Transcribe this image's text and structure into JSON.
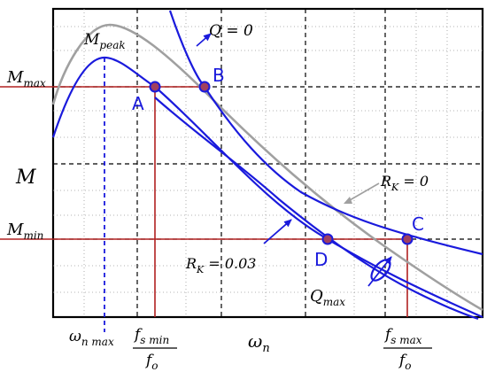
{
  "y_labels": {
    "m_max": {
      "main": "M",
      "sub": "max"
    },
    "m": {
      "main": "M"
    },
    "m_min": {
      "main": "M",
      "sub": "min"
    }
  },
  "x_labels": {
    "omega_n_max": {
      "main": "ω",
      "sub": "n max"
    },
    "omega_n": {
      "main": "ω",
      "sub": "n"
    },
    "fs_min_frac": {
      "num_main": "f",
      "num_sub": "s min",
      "den_main": "f",
      "den_sub": "o"
    },
    "fs_max_frac": {
      "num_main": "f",
      "num_sub": "s max",
      "den_main": "f",
      "den_sub": "o"
    }
  },
  "annotations": {
    "m_peak": {
      "main": "M",
      "sub": "peak"
    },
    "q_zero": "Q = 0",
    "rk_zero": {
      "main": "R",
      "sub": "K",
      "rest": " = 0"
    },
    "rk_003": {
      "main": "R",
      "sub": "K",
      "rest": " = 0.03"
    },
    "q_max": {
      "main": "Q",
      "sub": "max"
    }
  },
  "points": {
    "A": "A",
    "B": "B",
    "C": "C",
    "D": "D"
  },
  "colors": {
    "curve_blue": "#1a1adc",
    "curve_gray": "#a0a0a0",
    "guide_red": "#b02020",
    "point_fill": "#a04060",
    "axis": "#000000"
  }
}
